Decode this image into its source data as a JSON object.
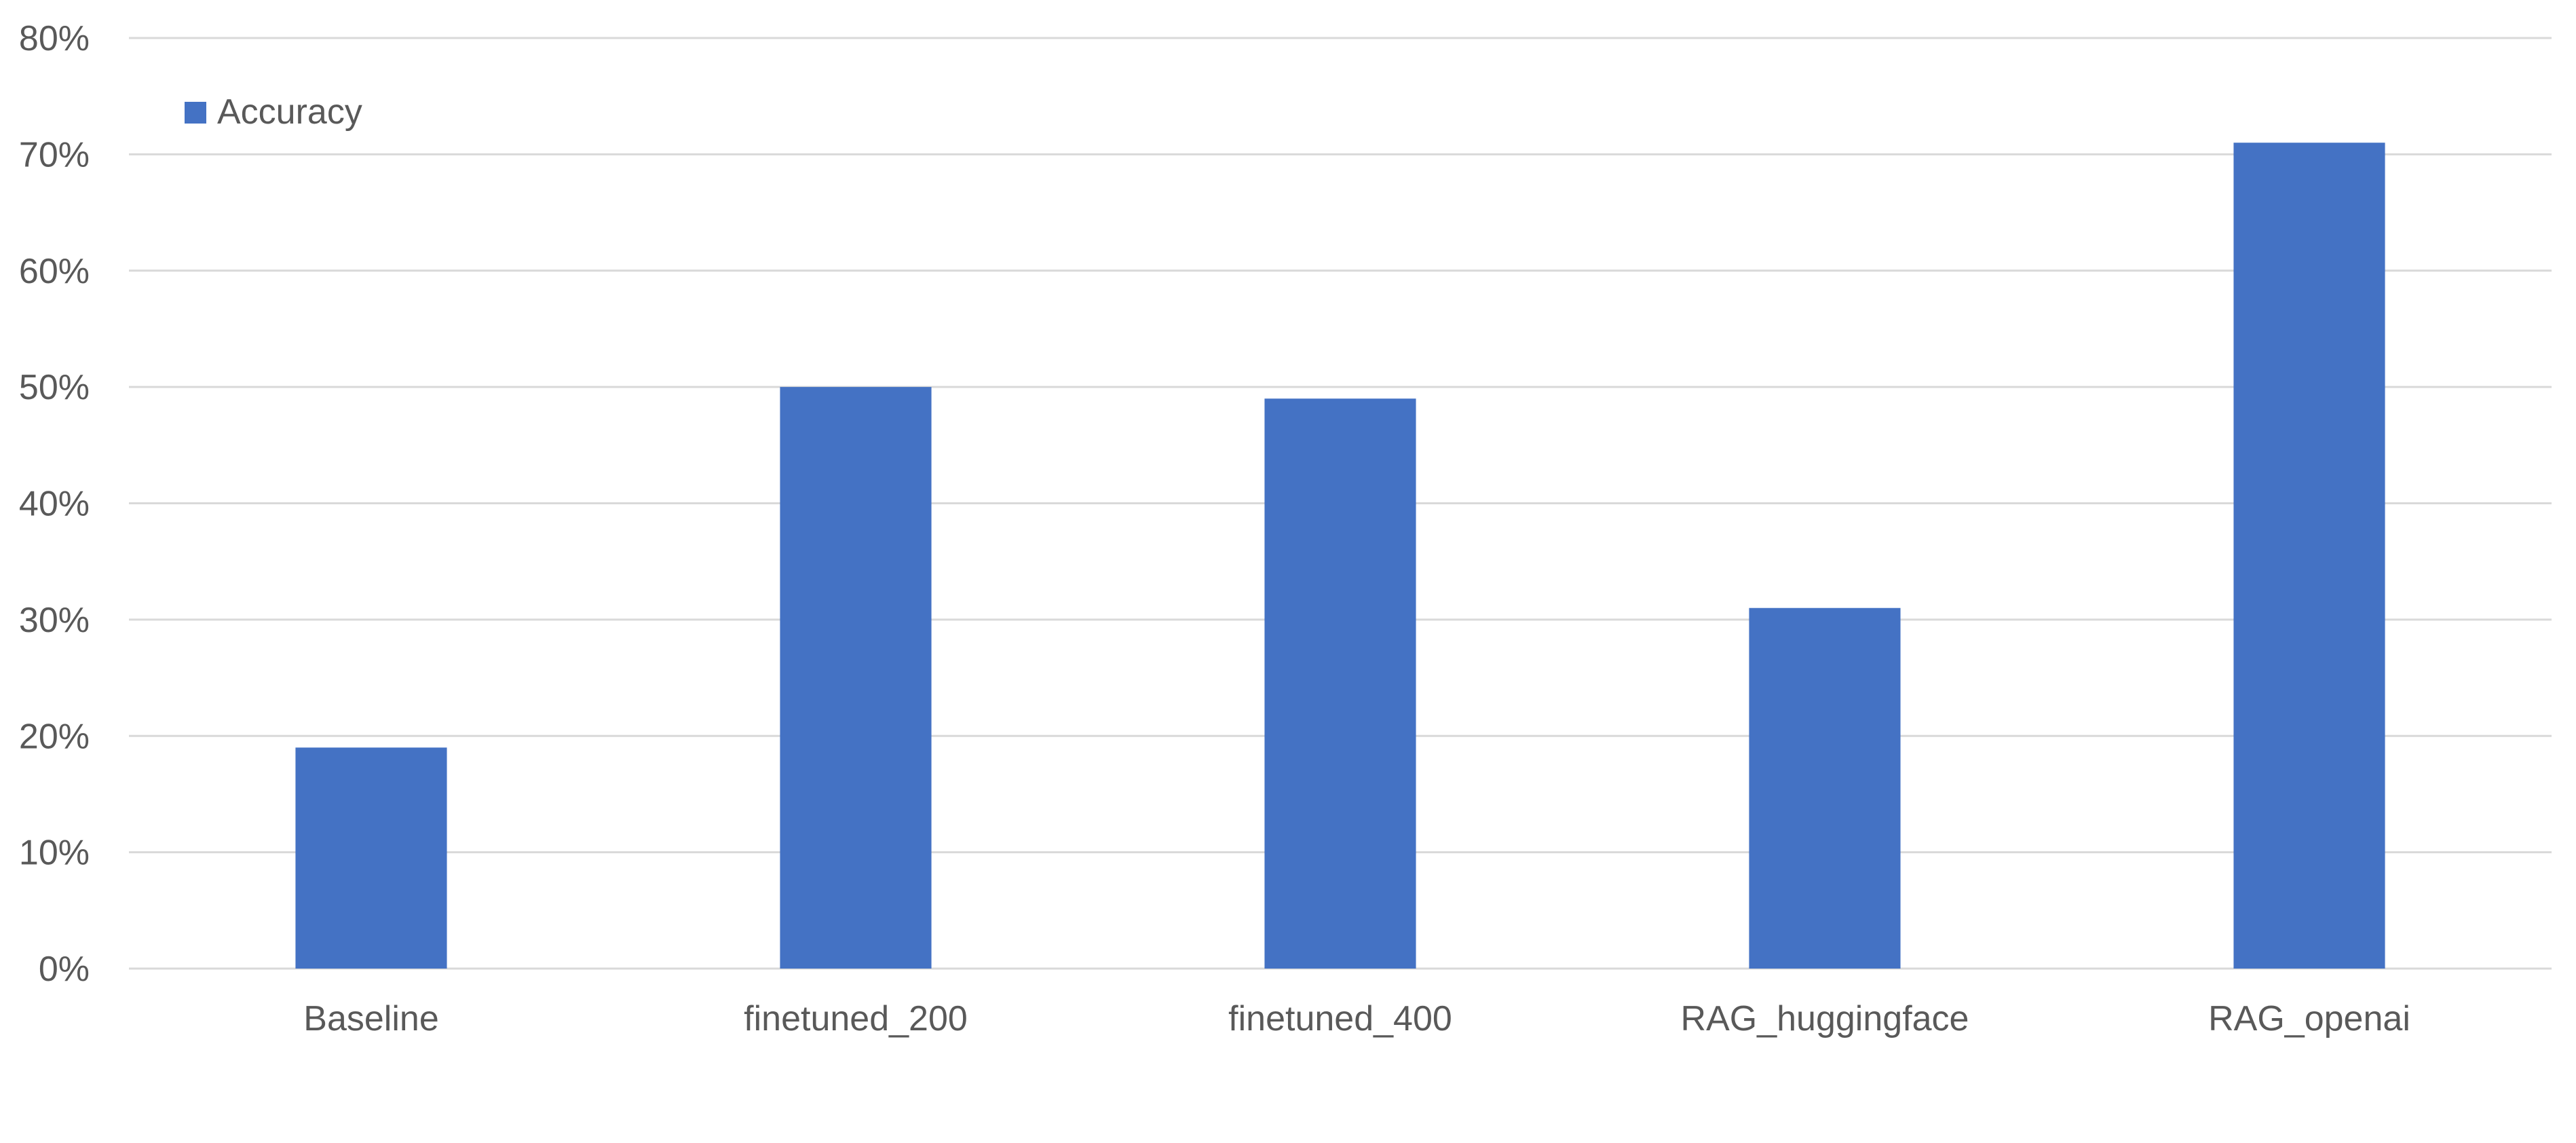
{
  "chart_data": {
    "type": "bar",
    "title": "",
    "xlabel": "",
    "ylabel": "",
    "categories": [
      "Baseline",
      "finetuned_200",
      "finetuned_400",
      "RAG_huggingface",
      "RAG_openai"
    ],
    "series": [
      {
        "name": "Accuracy",
        "values": [
          19,
          50,
          49,
          31,
          71
        ],
        "color": "#4472c4"
      }
    ],
    "ylim": [
      0,
      80
    ],
    "ytick_step": 10,
    "ytick_format": "percent",
    "grid": true,
    "legend": {
      "position": "top-left",
      "label": "Accuracy"
    }
  }
}
